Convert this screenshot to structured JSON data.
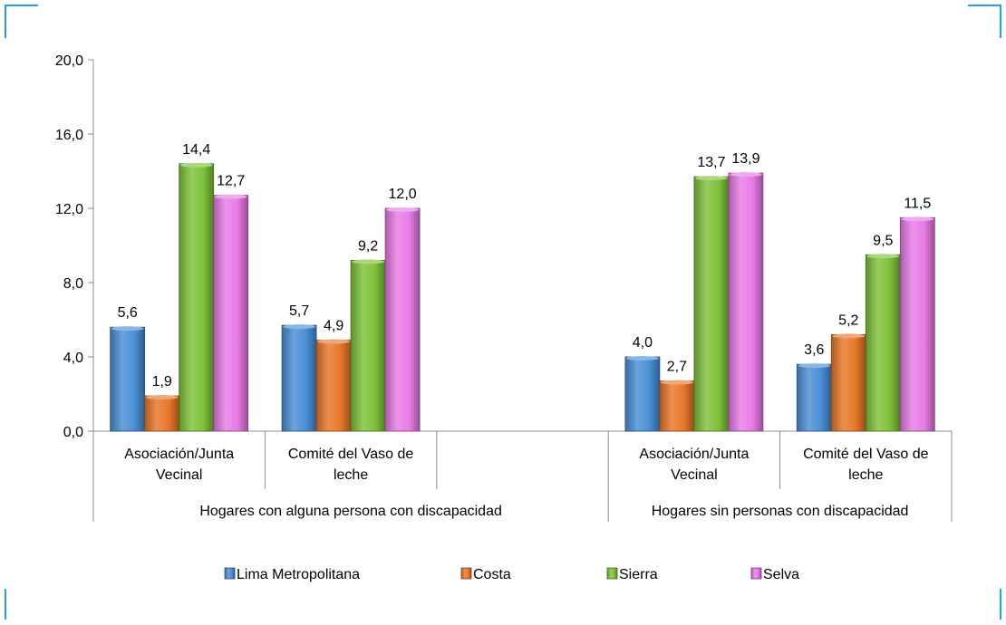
{
  "colors": {
    "frame": "#1fa3dc",
    "axis": "#8c8c8c",
    "series": [
      "#4a8fd6",
      "#e8782a",
      "#7fc23a",
      "#e77be6"
    ]
  },
  "chart_data": {
    "type": "bar",
    "title": "",
    "xlabel": "",
    "ylabel": "",
    "ylim": [
      0,
      20
    ],
    "yticks": [
      "0,0",
      "4,0",
      "8,0",
      "12,0",
      "16,0",
      "20,0"
    ],
    "grid": false,
    "legend_position": "bottom",
    "groups": [
      {
        "label": "Hogares con alguna persona con discapacidad",
        "categories": [
          {
            "label_line1": "Asociación/Junta",
            "label_line2": "Vecinal",
            "values": [
              5.6,
              1.9,
              14.4,
              12.7
            ],
            "labels": [
              "5,6",
              "1,9",
              "14,4",
              "12,7"
            ]
          },
          {
            "label_line1": "Comité del Vaso de",
            "label_line2": "leche",
            "values": [
              5.7,
              4.9,
              9.2,
              12.0
            ],
            "labels": [
              "5,7",
              "4,9",
              "9,2",
              "12,0"
            ]
          },
          {
            "label_line1": "",
            "label_line2": "",
            "values": [],
            "labels": []
          }
        ]
      },
      {
        "label": "Hogares sin personas con discapacidad",
        "categories": [
          {
            "label_line1": "Asociación/Junta",
            "label_line2": "Vecinal",
            "values": [
              4.0,
              2.7,
              13.7,
              13.9
            ],
            "labels": [
              "4,0",
              "2,7",
              "13,7",
              "13,9"
            ]
          },
          {
            "label_line1": "Comité del Vaso de",
            "label_line2": "leche",
            "values": [
              3.6,
              5.2,
              9.5,
              11.5
            ],
            "labels": [
              "3,6",
              "5,2",
              "9,5",
              "11,5"
            ]
          }
        ]
      }
    ],
    "series": [
      {
        "name": "Lima Metropolitana"
      },
      {
        "name": "Costa"
      },
      {
        "name": "Sierra"
      },
      {
        "name": "Selva"
      }
    ]
  }
}
